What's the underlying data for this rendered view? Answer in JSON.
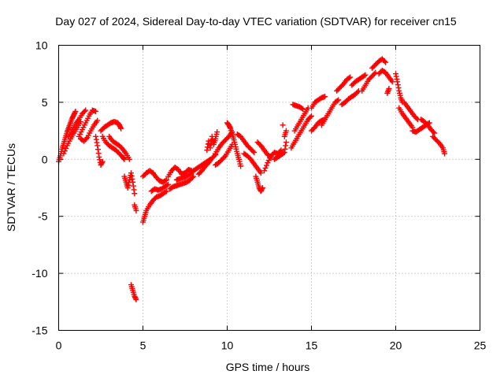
{
  "chart_data": {
    "type": "scatter",
    "title": "Day 027 of 2024, Sidereal Day-to-day VTEC variation (SDTVAR) for receiver cn15",
    "xlabel": "GPS time / hours",
    "ylabel": "SDTVAR / TECUs",
    "xlim": [
      0,
      25
    ],
    "ylim": [
      -15,
      10
    ],
    "xticks": [
      0,
      5,
      10,
      15,
      20,
      25
    ],
    "yticks": [
      -15,
      -10,
      -5,
      0,
      5,
      10
    ],
    "grid": true,
    "marker": "+",
    "color": "#ff0000",
    "series": [
      {
        "name": "SDTVAR",
        "points": [
          [
            0.0,
            -0.2
          ],
          [
            0.1,
            0.3
          ],
          [
            0.2,
            0.9
          ],
          [
            0.3,
            1.4
          ],
          [
            0.4,
            1.9
          ],
          [
            0.5,
            2.4
          ],
          [
            0.6,
            2.8
          ],
          [
            0.7,
            3.2
          ],
          [
            0.8,
            3.6
          ],
          [
            0.9,
            3.9
          ],
          [
            1.0,
            4.2
          ],
          [
            0.3,
            0.5
          ],
          [
            0.5,
            1.2
          ],
          [
            0.7,
            1.8
          ],
          [
            0.9,
            2.3
          ],
          [
            1.1,
            2.8
          ],
          [
            1.3,
            3.3
          ],
          [
            0.6,
            2.0
          ],
          [
            0.8,
            2.6
          ],
          [
            1.0,
            3.1
          ],
          [
            1.2,
            3.5
          ],
          [
            1.4,
            4.0
          ],
          [
            1.6,
            4.3
          ],
          [
            1.2,
            2.0
          ],
          [
            1.4,
            2.6
          ],
          [
            1.6,
            3.2
          ],
          [
            1.8,
            3.8
          ],
          [
            2.0,
            4.3
          ],
          [
            2.2,
            4.2
          ],
          [
            1.3,
            1.8
          ],
          [
            1.5,
            1.6
          ],
          [
            1.7,
            1.9
          ],
          [
            1.9,
            2.5
          ],
          [
            2.1,
            3.0
          ],
          [
            2.3,
            3.4
          ],
          [
            2.2,
            2.0
          ],
          [
            2.3,
            1.2
          ],
          [
            2.4,
            0.2
          ],
          [
            2.5,
            -0.5
          ],
          [
            2.6,
            -0.2
          ],
          [
            2.5,
            2.5
          ],
          [
            2.7,
            2.8
          ],
          [
            2.9,
            3.0
          ],
          [
            3.1,
            3.2
          ],
          [
            3.3,
            3.3
          ],
          [
            3.5,
            3.2
          ],
          [
            3.6,
            3.0
          ],
          [
            3.7,
            2.7
          ],
          [
            2.6,
            2.0
          ],
          [
            2.8,
            1.5
          ],
          [
            3.0,
            1.2
          ],
          [
            3.2,
            1.0
          ],
          [
            3.4,
            0.8
          ],
          [
            3.6,
            0.5
          ],
          [
            3.8,
            0.2
          ],
          [
            3.9,
            0.0
          ],
          [
            3.0,
            2.0
          ],
          [
            3.2,
            1.6
          ],
          [
            3.4,
            1.4
          ],
          [
            3.6,
            1.2
          ],
          [
            3.8,
            0.9
          ],
          [
            4.0,
            0.5
          ],
          [
            4.2,
            0.0
          ],
          [
            3.9,
            -1.5
          ],
          [
            4.0,
            -2.0
          ],
          [
            4.1,
            -2.5
          ],
          [
            4.2,
            -1.8
          ],
          [
            4.3,
            -1.2
          ],
          [
            4.4,
            -2.0
          ],
          [
            4.5,
            -3.0
          ],
          [
            4.5,
            -4.0
          ],
          [
            4.6,
            -4.5
          ],
          [
            4.3,
            -11.0
          ],
          [
            4.4,
            -11.5
          ],
          [
            4.5,
            -12.0
          ],
          [
            4.6,
            -12.3
          ],
          [
            5.0,
            -5.5
          ],
          [
            5.1,
            -5.0
          ],
          [
            5.2,
            -4.5
          ],
          [
            5.4,
            -4.0
          ],
          [
            5.6,
            -3.6
          ],
          [
            5.8,
            -3.3
          ],
          [
            6.0,
            -3.2
          ],
          [
            6.2,
            -3.0
          ],
          [
            6.4,
            -2.8
          ],
          [
            5.0,
            -1.5
          ],
          [
            5.2,
            -1.2
          ],
          [
            5.4,
            -1.0
          ],
          [
            5.6,
            -1.2
          ],
          [
            5.8,
            -1.6
          ],
          [
            6.0,
            -1.9
          ],
          [
            6.2,
            -2.0
          ],
          [
            6.4,
            -1.8
          ],
          [
            5.5,
            -2.8
          ],
          [
            5.7,
            -2.6
          ],
          [
            5.9,
            -2.7
          ],
          [
            6.1,
            -2.6
          ],
          [
            6.3,
            -2.4
          ],
          [
            6.5,
            -2.2
          ],
          [
            6.5,
            -1.5
          ],
          [
            6.7,
            -1.0
          ],
          [
            6.9,
            -0.7
          ],
          [
            7.1,
            -0.9
          ],
          [
            7.3,
            -1.3
          ],
          [
            7.5,
            -1.2
          ],
          [
            7.7,
            -0.9
          ],
          [
            7.9,
            -1.0
          ],
          [
            6.6,
            -2.6
          ],
          [
            6.8,
            -2.4
          ],
          [
            7.0,
            -2.3
          ],
          [
            7.2,
            -2.2
          ],
          [
            7.4,
            -2.1
          ],
          [
            7.6,
            -2.0
          ],
          [
            7.8,
            -1.8
          ],
          [
            8.0,
            -1.5
          ],
          [
            7.0,
            -1.8
          ],
          [
            7.2,
            -1.7
          ],
          [
            7.4,
            -1.6
          ],
          [
            7.6,
            -1.5
          ],
          [
            7.8,
            -1.3
          ],
          [
            8.0,
            -1.0
          ],
          [
            8.2,
            -0.8
          ],
          [
            8.4,
            -0.6
          ],
          [
            8.6,
            -0.4
          ],
          [
            8.8,
            -0.2
          ],
          [
            9.0,
            0.0
          ],
          [
            8.3,
            -1.3
          ],
          [
            8.5,
            -1.0
          ],
          [
            8.7,
            -0.6
          ],
          [
            8.9,
            -0.3
          ],
          [
            9.1,
            0.1
          ],
          [
            9.3,
            0.4
          ],
          [
            8.8,
            0.8
          ],
          [
            8.9,
            1.6
          ],
          [
            9.0,
            1.0
          ],
          [
            9.1,
            2.0
          ],
          [
            9.2,
            1.3
          ],
          [
            9.3,
            1.8
          ],
          [
            9.4,
            2.4
          ],
          [
            9.3,
            0.5
          ],
          [
            9.5,
            1.0
          ],
          [
            9.7,
            1.4
          ],
          [
            9.9,
            1.7
          ],
          [
            10.1,
            2.0
          ],
          [
            10.3,
            2.4
          ],
          [
            9.3,
            -0.5
          ],
          [
            9.5,
            -0.3
          ],
          [
            9.7,
            0.0
          ],
          [
            9.9,
            0.3
          ],
          [
            10.1,
            0.8
          ],
          [
            10.3,
            1.3
          ],
          [
            10.0,
            3.2
          ],
          [
            10.1,
            3.0
          ],
          [
            10.2,
            2.7
          ],
          [
            10.3,
            2.2
          ],
          [
            10.4,
            1.7
          ],
          [
            10.5,
            1.1
          ],
          [
            10.6,
            0.5
          ],
          [
            10.7,
            0.0
          ],
          [
            10.8,
            -0.6
          ],
          [
            10.6,
            2.2
          ],
          [
            10.8,
            2.0
          ],
          [
            11.0,
            1.6
          ],
          [
            11.2,
            1.2
          ],
          [
            11.4,
            0.9
          ],
          [
            11.6,
            0.6
          ],
          [
            11.0,
            0.5
          ],
          [
            11.2,
            0.3
          ],
          [
            11.4,
            0.0
          ],
          [
            11.6,
            -0.4
          ],
          [
            11.8,
            -0.8
          ],
          [
            12.0,
            -1.2
          ],
          [
            11.7,
            -1.5
          ],
          [
            11.8,
            -2.0
          ],
          [
            11.9,
            -2.5
          ],
          [
            12.0,
            -2.8
          ],
          [
            12.1,
            -2.5
          ],
          [
            11.8,
            1.5
          ],
          [
            12.0,
            1.2
          ],
          [
            12.2,
            0.8
          ],
          [
            12.4,
            0.4
          ],
          [
            12.6,
            0.2
          ],
          [
            12.2,
            -1.0
          ],
          [
            12.4,
            -0.3
          ],
          [
            12.6,
            0.3
          ],
          [
            12.8,
            0.6
          ],
          [
            13.0,
            0.5
          ],
          [
            13.2,
            0.8
          ],
          [
            12.8,
            0.0
          ],
          [
            13.0,
            0.2
          ],
          [
            13.2,
            0.4
          ],
          [
            13.4,
            0.6
          ],
          [
            13.5,
            1.5
          ],
          [
            13.4,
            2.0
          ],
          [
            13.5,
            2.5
          ],
          [
            13.3,
            3.0
          ],
          [
            13.8,
            1.0
          ],
          [
            14.0,
            1.5
          ],
          [
            14.2,
            2.0
          ],
          [
            14.4,
            2.5
          ],
          [
            14.6,
            3.0
          ],
          [
            14.8,
            3.5
          ],
          [
            15.0,
            3.8
          ],
          [
            14.0,
            2.5
          ],
          [
            14.2,
            3.0
          ],
          [
            14.4,
            3.5
          ],
          [
            14.6,
            4.0
          ],
          [
            14.8,
            4.5
          ],
          [
            13.9,
            4.8
          ],
          [
            14.1,
            4.7
          ],
          [
            14.3,
            4.6
          ],
          [
            14.5,
            4.4
          ],
          [
            15.0,
            2.5
          ],
          [
            15.2,
            2.8
          ],
          [
            15.4,
            3.2
          ],
          [
            15.6,
            3.4
          ],
          [
            15.8,
            3.5
          ],
          [
            15.0,
            4.5
          ],
          [
            15.2,
            5.0
          ],
          [
            15.4,
            5.2
          ],
          [
            15.6,
            5.4
          ],
          [
            15.8,
            5.5
          ],
          [
            15.6,
            3.0
          ],
          [
            15.8,
            3.5
          ],
          [
            16.0,
            4.0
          ],
          [
            16.2,
            4.5
          ],
          [
            16.4,
            5.0
          ],
          [
            16.6,
            5.2
          ],
          [
            16.5,
            6.0
          ],
          [
            16.7,
            6.3
          ],
          [
            16.9,
            6.6
          ],
          [
            17.1,
            7.0
          ],
          [
            17.3,
            7.2
          ],
          [
            16.8,
            4.8
          ],
          [
            17.0,
            5.0
          ],
          [
            17.2,
            5.3
          ],
          [
            17.4,
            5.5
          ],
          [
            17.6,
            5.7
          ],
          [
            17.8,
            6.0
          ],
          [
            17.4,
            6.5
          ],
          [
            17.6,
            6.8
          ],
          [
            17.8,
            7.0
          ],
          [
            18.0,
            7.2
          ],
          [
            18.2,
            7.4
          ],
          [
            18.0,
            6.0
          ],
          [
            18.2,
            6.5
          ],
          [
            18.4,
            7.0
          ],
          [
            18.6,
            7.3
          ],
          [
            18.8,
            7.6
          ],
          [
            18.6,
            8.0
          ],
          [
            18.8,
            8.3
          ],
          [
            19.0,
            8.6
          ],
          [
            19.2,
            8.8
          ],
          [
            19.4,
            8.5
          ],
          [
            19.0,
            7.5
          ],
          [
            19.2,
            7.8
          ],
          [
            19.4,
            7.6
          ],
          [
            19.6,
            7.2
          ],
          [
            19.8,
            6.8
          ],
          [
            19.5,
            5.8
          ],
          [
            19.6,
            6.2
          ],
          [
            20.0,
            7.5
          ],
          [
            20.1,
            6.8
          ],
          [
            20.2,
            6.0
          ],
          [
            20.3,
            5.4
          ],
          [
            20.4,
            5.0
          ],
          [
            20.2,
            4.5
          ],
          [
            20.4,
            4.0
          ],
          [
            20.6,
            3.6
          ],
          [
            20.8,
            3.2
          ],
          [
            21.0,
            2.8
          ],
          [
            20.5,
            5.0
          ],
          [
            20.7,
            4.6
          ],
          [
            20.9,
            4.2
          ],
          [
            21.1,
            3.8
          ],
          [
            21.3,
            3.5
          ],
          [
            21.0,
            2.5
          ],
          [
            21.2,
            2.4
          ],
          [
            21.4,
            2.6
          ],
          [
            21.6,
            2.8
          ],
          [
            21.8,
            3.0
          ],
          [
            22.0,
            3.2
          ],
          [
            21.5,
            3.5
          ],
          [
            21.7,
            3.3
          ],
          [
            21.9,
            3.0
          ],
          [
            22.1,
            2.6
          ],
          [
            22.3,
            2.3
          ],
          [
            22.2,
            2.0
          ],
          [
            22.4,
            1.7
          ],
          [
            22.6,
            1.4
          ],
          [
            22.8,
            1.0
          ],
          [
            22.9,
            0.5
          ]
        ]
      }
    ]
  }
}
